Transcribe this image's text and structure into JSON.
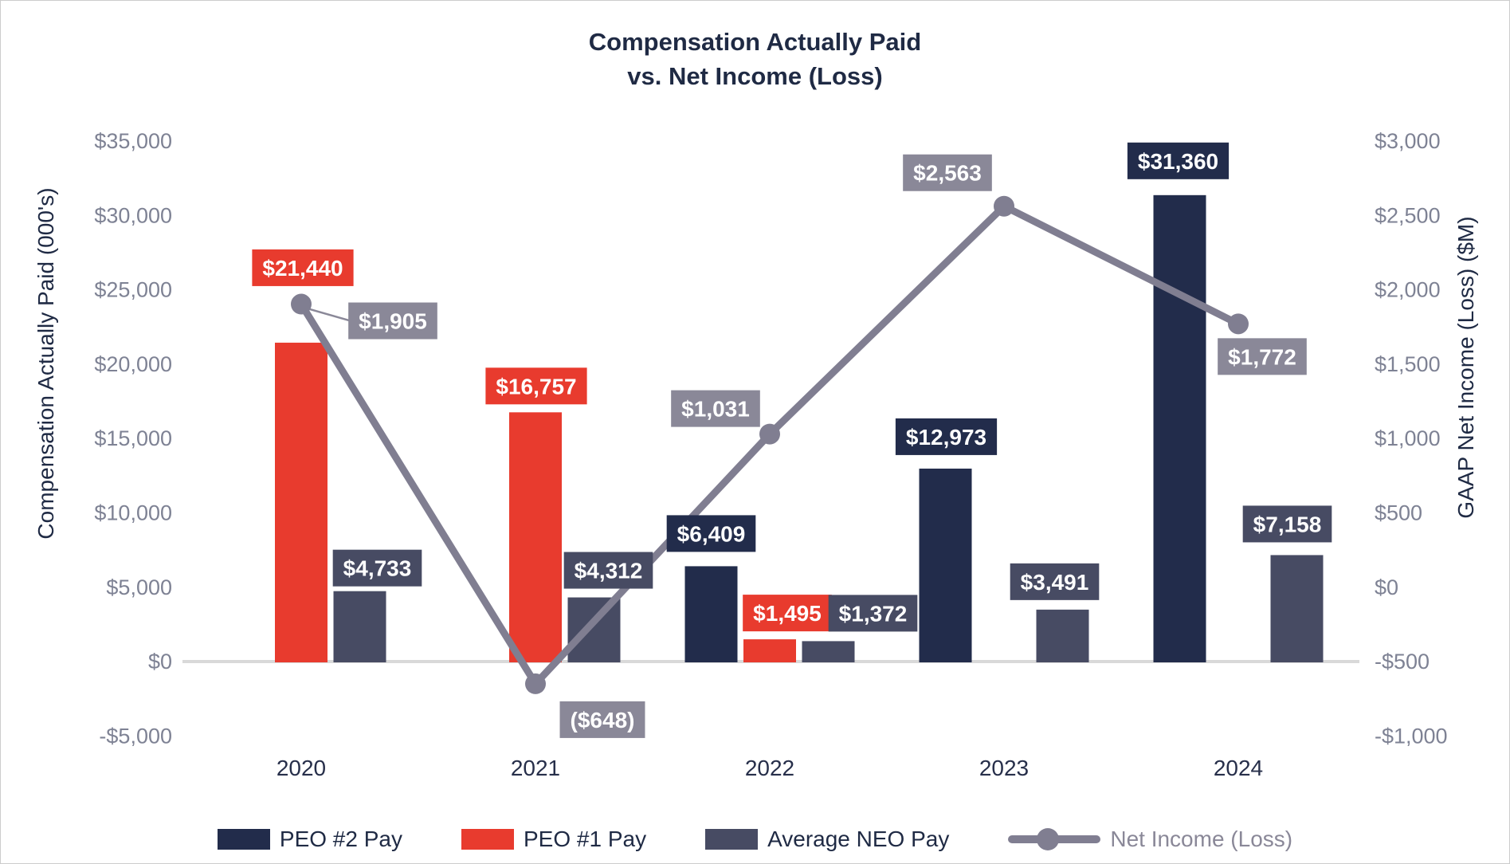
{
  "title": {
    "line1": "Compensation Actually Paid",
    "line2": "vs. Net Income (Loss)"
  },
  "left_axis": {
    "title": "Compensation Actually Paid (000's)",
    "ticks": [
      "$35,000",
      "$30,000",
      "$25,000",
      "$20,000",
      "$15,000",
      "$10,000",
      "$5,000",
      "$0",
      "-$5,000"
    ]
  },
  "right_axis": {
    "title": "GAAP Net Income (Loss) ($M)",
    "ticks": [
      "$3,000",
      "$2,500",
      "$2,000",
      "$1,500",
      "$1,000",
      "$500",
      "$0",
      "-$500",
      "-$1,000"
    ]
  },
  "colors": {
    "navy": "#222c4b",
    "red": "#e83b2e",
    "slate": "#474b63",
    "line_gray": "#807e91",
    "badge_gray": "#8a8898",
    "tick_text": "#7e8294",
    "year_text": "#272f4a",
    "gridline": "#d9d9d9",
    "badge_text": "#ffffff"
  },
  "legend": [
    {
      "label": "PEO #2 Pay",
      "type": "bar",
      "color_key": "navy"
    },
    {
      "label": "PEO #1 Pay",
      "type": "bar",
      "color_key": "red"
    },
    {
      "label": "Average NEO Pay",
      "type": "bar",
      "color_key": "slate"
    },
    {
      "label": "Net Income (Loss)",
      "type": "line",
      "color_key": "line_gray"
    }
  ],
  "chart_data": {
    "type": "bar+line combo, dual axis",
    "categories": [
      "2020",
      "2021",
      "2022",
      "2023",
      "2024"
    ],
    "left_ylim": [
      -5000,
      35000
    ],
    "right_ylim": [
      -1000,
      3000
    ],
    "grid": "zero line only",
    "legend_position": "bottom",
    "series": [
      {
        "name": "PEO #2 Pay",
        "type": "bar",
        "axis": "left",
        "color_key": "navy",
        "values": [
          null,
          null,
          6409,
          12973,
          31360
        ],
        "labels": [
          null,
          null,
          "$6,409",
          "$12,973",
          "$31,360"
        ],
        "label_dx": [
          0,
          0,
          0,
          1,
          -2
        ],
        "label_dy": [
          0,
          0,
          -12,
          -11,
          -14
        ]
      },
      {
        "name": "PEO #1 Pay",
        "type": "bar",
        "axis": "left",
        "color_key": "red",
        "values": [
          21440,
          16757,
          1495,
          null,
          null
        ],
        "labels": [
          "$21,440",
          "$16,757",
          "$1,495",
          null,
          null
        ],
        "label_dx": [
          2,
          1,
          22,
          0,
          0
        ],
        "label_dy": [
          -65,
          -4,
          -4,
          0,
          0
        ]
      },
      {
        "name": "Average NEO Pay",
        "type": "bar",
        "axis": "left",
        "color_key": "slate",
        "values": [
          4733,
          4312,
          1372,
          3491,
          7158
        ],
        "labels": [
          "$4,733",
          "$4,312",
          "$1,372",
          "$3,491",
          "$7,158"
        ],
        "label_dx": [
          22,
          18,
          56,
          -10,
          -12
        ],
        "label_dy": [
          0,
          -5,
          -6,
          -6,
          -10
        ]
      },
      {
        "name": "Net Income (Loss)",
        "type": "line",
        "axis": "right",
        "color_key": "line_gray",
        "values": [
          1905,
          -648,
          1031,
          2563,
          1772
        ],
        "labels": [
          "$1,905",
          "($648)",
          "$1,031",
          "$2,563",
          "$1,772"
        ],
        "label_dx": [
          115,
          84,
          -68,
          -71,
          30
        ],
        "label_dy": [
          21,
          45,
          -32,
          -42,
          41
        ],
        "leader": [
          true,
          false,
          false,
          false,
          false
        ]
      }
    ]
  }
}
